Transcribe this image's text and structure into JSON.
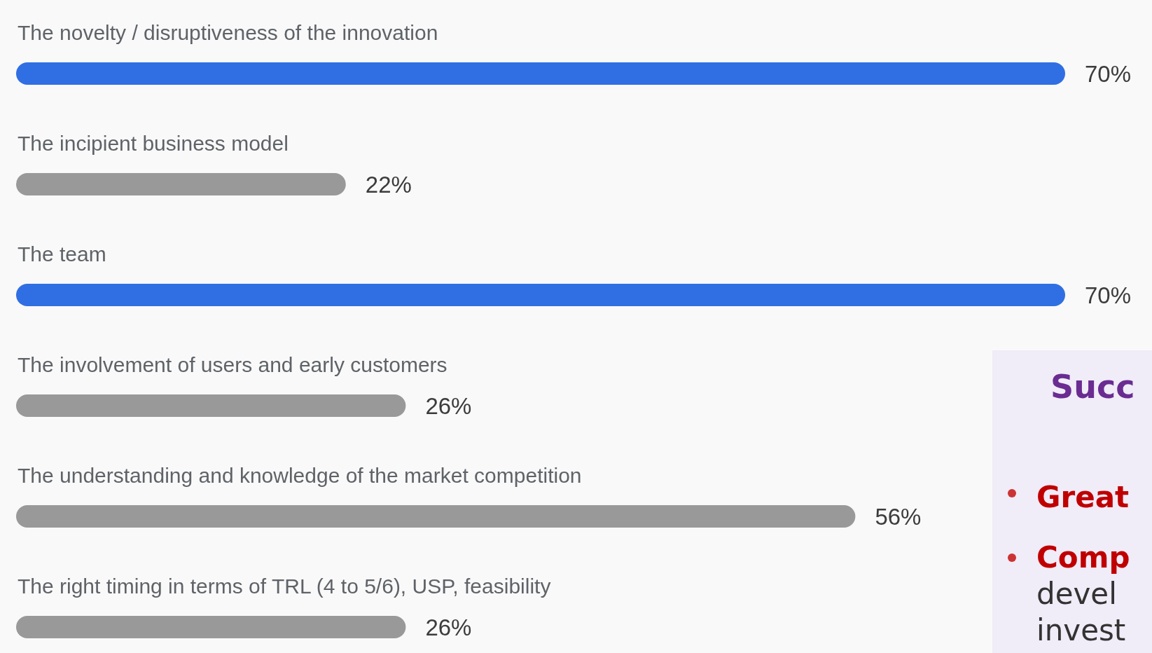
{
  "chart_data": {
    "type": "bar",
    "orientation": "horizontal",
    "categories": [
      "The novelty / disruptiveness of the innovation",
      "The incipient business model",
      "The team",
      "The involvement of users and early customers",
      "The understanding and knowledge of the market competition",
      "The right timing in terms of TRL (4 to 5/6), USP, feasibility"
    ],
    "values": [
      70,
      22,
      70,
      26,
      56,
      26
    ],
    "colors": [
      "#306fe3",
      "#999999",
      "#306fe3",
      "#999999",
      "#999999",
      "#999999"
    ],
    "value_labels": [
      "70%",
      "22%",
      "70%",
      "26%",
      "56%",
      "26%"
    ],
    "annotations": [
      "Succ",
      "Great",
      "Comp",
      "devel",
      "invest"
    ]
  }
}
